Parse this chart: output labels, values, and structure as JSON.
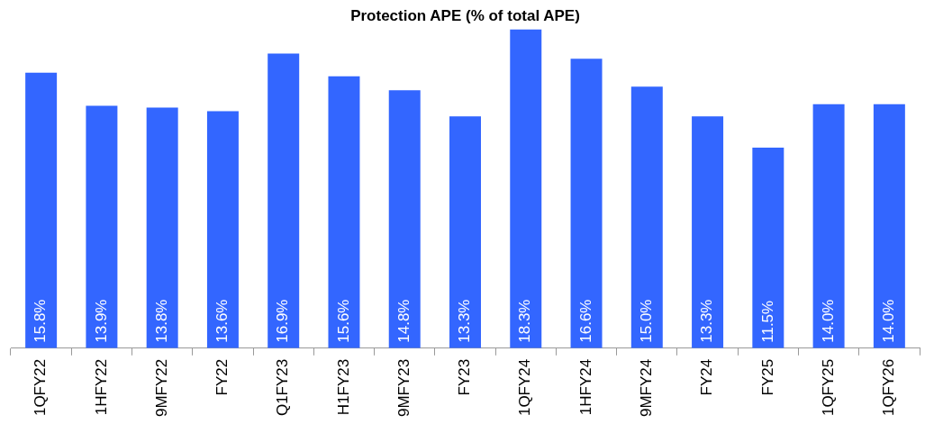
{
  "chart_data": {
    "type": "bar",
    "title": "Protection APE (% of total APE)",
    "categories": [
      "1QFY22",
      "1HFY22",
      "9MFY22",
      "FY22",
      "Q1FY23",
      "H1FY23",
      "9MFY23",
      "FY23",
      "1QFY24",
      "1HFY24",
      "9MFY24",
      "FY24",
      "FY25",
      "1QFY25",
      "1QFY26"
    ],
    "values": [
      15.8,
      13.9,
      13.8,
      13.6,
      16.9,
      15.6,
      14.8,
      13.3,
      18.3,
      16.6,
      15.0,
      13.3,
      11.5,
      14.0,
      14.0
    ],
    "value_labels": [
      "15.8%",
      "13.9%",
      "13.8%",
      "13.6%",
      "16.9%",
      "15.6%",
      "14.8%",
      "13.3%",
      "18.3%",
      "16.6%",
      "15.0%",
      "13.3%",
      "11.5%",
      "14.0%",
      "14.0%"
    ],
    "color": "#3366ff",
    "grid": false,
    "legend": false
  }
}
